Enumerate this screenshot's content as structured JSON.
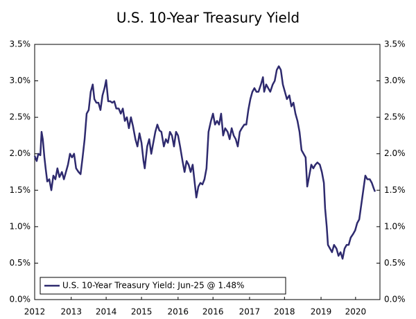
{
  "chart_data": {
    "type": "line",
    "title": "U.S. 10-Year Treasury Yield",
    "x": [
      2012.0,
      2012.05,
      2012.09,
      2012.14,
      2012.17,
      2012.2,
      2012.24,
      2012.27,
      2012.31,
      2012.36,
      2012.41,
      2012.46,
      2012.51,
      2012.56,
      2012.61,
      2012.67,
      2012.72,
      2012.77,
      2012.82,
      2012.87,
      2012.92,
      2012.97,
      2013.02,
      2013.08,
      2013.13,
      2013.18,
      2013.23,
      2013.28,
      2013.33,
      2013.38,
      2013.43,
      2013.47,
      2013.52,
      2013.57,
      2013.62,
      2013.67,
      2013.72,
      2013.76,
      2013.81,
      2013.86,
      2013.91,
      2013.96,
      2014.01,
      2014.07,
      2014.12,
      2014.17,
      2014.22,
      2014.27,
      2014.32,
      2014.37,
      2014.42,
      2014.48,
      2014.53,
      2014.58,
      2014.63,
      2014.68,
      2014.71,
      2014.77,
      2014.82,
      2014.87,
      2014.92,
      2014.97,
      2015.02,
      2015.07,
      2015.12,
      2015.18,
      2015.23,
      2015.28,
      2015.33,
      2015.38,
      2015.43,
      2015.48,
      2015.53,
      2015.58,
      2015.64,
      2015.69,
      2015.74,
      2015.79,
      2015.84,
      2015.89,
      2015.94,
      2015.98,
      2016.03,
      2016.08,
      2016.13,
      2016.18,
      2016.23,
      2016.28,
      2016.34,
      2016.39,
      2016.44,
      2016.49,
      2016.54,
      2016.59,
      2016.64,
      2016.69,
      2016.75,
      2016.8,
      2016.85,
      2016.9,
      2016.95,
      2017.0,
      2017.05,
      2017.1,
      2017.16,
      2017.21,
      2017.26,
      2017.31,
      2017.36,
      2017.41,
      2017.46,
      2017.51,
      2017.57,
      2017.62,
      2017.65,
      2017.7,
      2017.75,
      2017.8,
      2017.86,
      2017.91,
      2017.96,
      2018.01,
      2018.06,
      2018.11,
      2018.16,
      2018.21,
      2018.27,
      2018.32,
      2018.37,
      2018.42,
      2018.47,
      2018.52,
      2018.57,
      2018.62,
      2018.67,
      2018.71,
      2018.76,
      2018.81,
      2018.86,
      2018.91,
      2018.96,
      2019.02,
      2019.07,
      2019.12,
      2019.15,
      2019.19,
      2019.22,
      2019.27,
      2019.32,
      2019.37,
      2019.43,
      2019.48,
      2019.53,
      2019.58,
      2019.63,
      2019.68,
      2019.73,
      2019.78,
      2019.84,
      2019.89,
      2019.94,
      2019.99,
      2020.04,
      2020.09,
      2020.14,
      2020.19,
      2020.25,
      2020.3,
      2020.35,
      2020.38
    ],
    "series": [
      {
        "name": "U.S. 10-Year Treasury Yield: Jun-25 @ 1.48%",
        "color": "#2e2a6e",
        "values": [
          1.97,
          1.9,
          2.0,
          1.98,
          2.3,
          2.2,
          1.95,
          1.8,
          1.62,
          1.65,
          1.5,
          1.7,
          1.65,
          1.8,
          1.68,
          1.75,
          1.65,
          1.75,
          1.85,
          2.0,
          1.95,
          2.0,
          1.8,
          1.75,
          1.72,
          1.95,
          2.2,
          2.55,
          2.6,
          2.85,
          2.95,
          2.75,
          2.7,
          2.7,
          2.6,
          2.8,
          2.9,
          3.01,
          2.72,
          2.72,
          2.7,
          2.72,
          2.62,
          2.62,
          2.55,
          2.62,
          2.45,
          2.5,
          2.35,
          2.5,
          2.38,
          2.2,
          2.1,
          2.28,
          2.15,
          1.9,
          1.8,
          2.1,
          2.2,
          2.0,
          2.15,
          2.3,
          2.4,
          2.32,
          2.3,
          2.1,
          2.2,
          2.15,
          2.3,
          2.25,
          2.1,
          2.3,
          2.25,
          2.1,
          1.9,
          1.75,
          1.9,
          1.85,
          1.75,
          1.85,
          1.6,
          1.4,
          1.55,
          1.6,
          1.58,
          1.65,
          1.8,
          2.3,
          2.45,
          2.55,
          2.4,
          2.45,
          2.4,
          2.55,
          2.25,
          2.35,
          2.3,
          2.2,
          2.35,
          2.25,
          2.2,
          2.1,
          2.3,
          2.35,
          2.4,
          2.4,
          2.6,
          2.75,
          2.85,
          2.9,
          2.85,
          2.85,
          2.95,
          3.05,
          2.85,
          2.95,
          2.9,
          2.85,
          2.95,
          3.0,
          3.15,
          3.2,
          3.15,
          2.95,
          2.85,
          2.75,
          2.8,
          2.65,
          2.7,
          2.55,
          2.45,
          2.3,
          2.05,
          2.0,
          1.95,
          1.55,
          1.7,
          1.85,
          1.8,
          1.85,
          1.88,
          1.85,
          1.75,
          1.6,
          1.25,
          1.0,
          0.75,
          0.7,
          0.65,
          0.75,
          0.7,
          0.6,
          0.65,
          0.56,
          0.7,
          0.75,
          0.75,
          0.85,
          0.9,
          0.95,
          1.05,
          1.1,
          1.3,
          1.5,
          1.7,
          1.65,
          1.65,
          1.6,
          1.52,
          1.48
        ]
      }
    ],
    "xlim": [
      2012.0,
      2020.5
    ],
    "xticks": [
      {
        "value": 2012.0,
        "label": "2012"
      },
      {
        "value": 2012.9,
        "label": "2013"
      },
      {
        "value": 2013.76,
        "label": "2014"
      },
      {
        "value": 2014.63,
        "label": "2015"
      },
      {
        "value": 2015.53,
        "label": "2016"
      },
      {
        "value": 2016.39,
        "label": "2016"
      },
      {
        "value": 2017.29,
        "label": "2017"
      },
      {
        "value": 2018.15,
        "label": "2018"
      },
      {
        "value": 2019.05,
        "label": "2019"
      },
      {
        "value": 2019.9,
        "label": "2020"
      }
    ],
    "ylim": [
      0,
      3.5
    ],
    "yticks": [
      {
        "value": 0,
        "label": "0.0%"
      },
      {
        "value": 0.5,
        "label": "0.5%"
      },
      {
        "value": 1.0,
        "label": "1.0%"
      },
      {
        "value": 1.5,
        "label": "1.5%"
      },
      {
        "value": 2.0,
        "label": "2.0%"
      },
      {
        "value": 2.5,
        "label": "2.5%"
      },
      {
        "value": 3.0,
        "label": "3.0%"
      },
      {
        "value": 3.5,
        "label": "3.5%"
      }
    ],
    "y2lim": [
      0,
      3.5
    ],
    "y2ticks": [
      {
        "value": 0,
        "label": "0.0%"
      },
      {
        "value": 0.5,
        "label": "0.5%"
      },
      {
        "value": 1.0,
        "label": "1.0%"
      },
      {
        "value": 1.5,
        "label": "1.5%"
      },
      {
        "value": 2.0,
        "label": "2.0%"
      },
      {
        "value": 2.5,
        "label": "2.5%"
      },
      {
        "value": 3.0,
        "label": "3.0%"
      },
      {
        "value": 3.5,
        "label": "3.5%"
      }
    ],
    "grid": false,
    "legend": "lower left"
  }
}
